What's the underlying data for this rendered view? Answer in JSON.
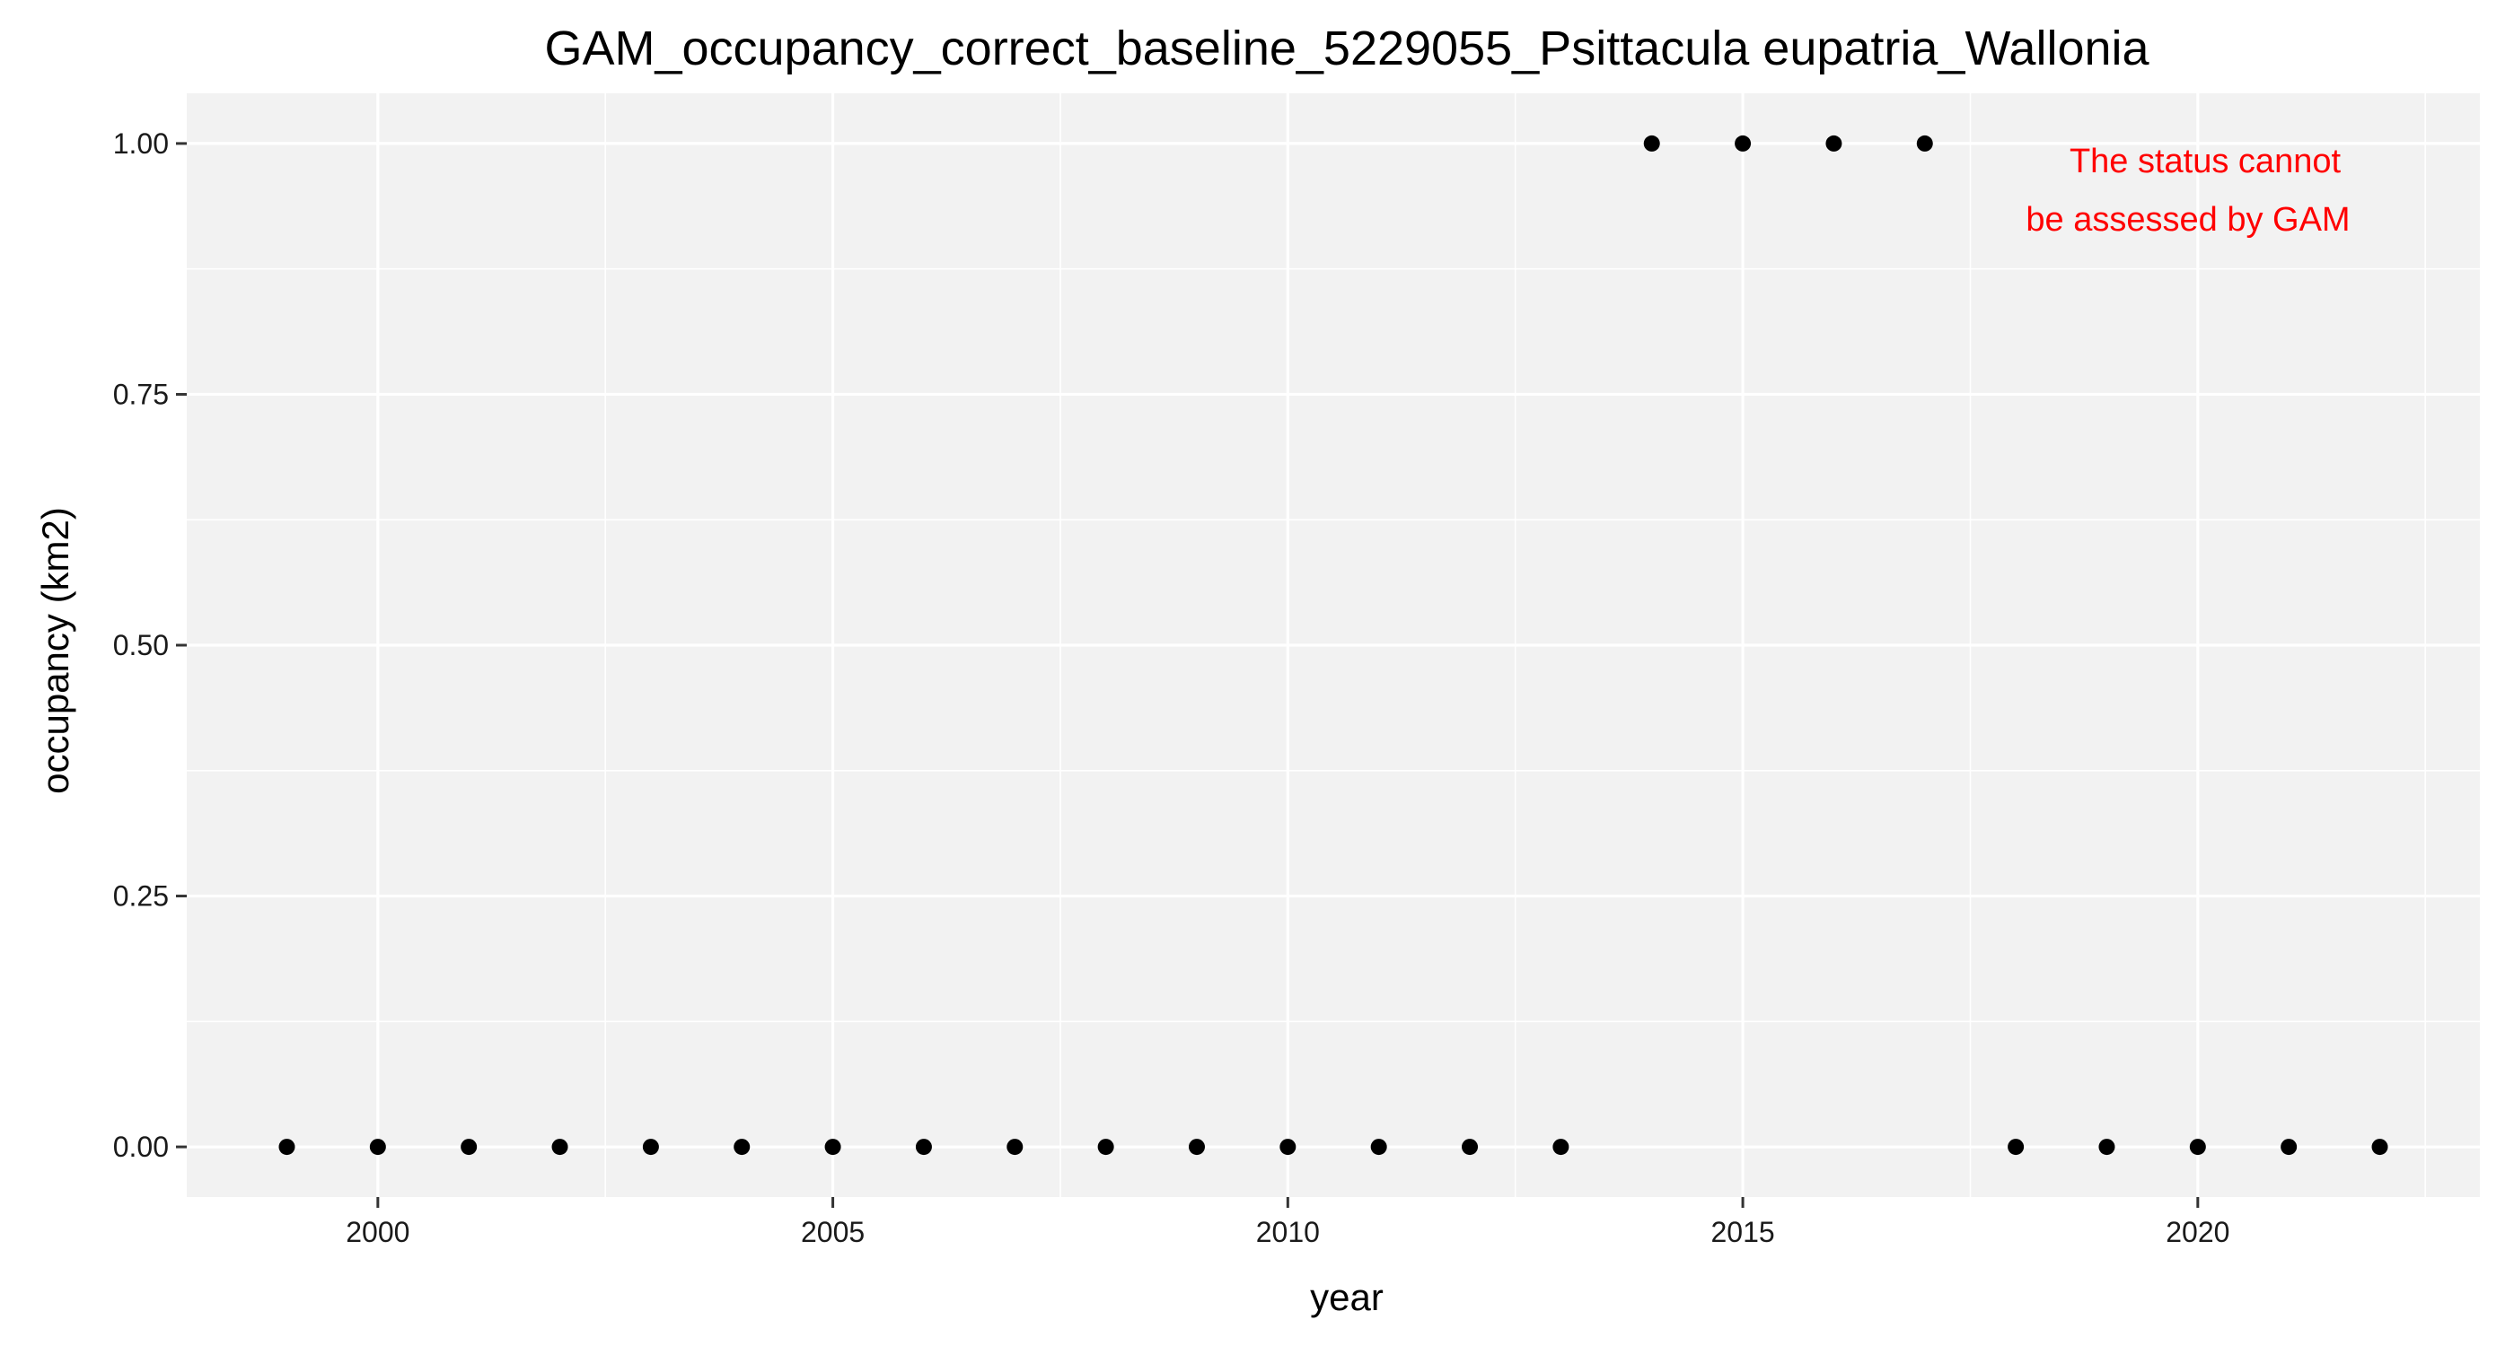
{
  "chart_data": {
    "type": "scatter",
    "title": "GAM_occupancy_correct_baseline_5229055_Psittacula eupatria_Wallonia",
    "xlabel": "year",
    "ylabel": "occupancy (km2)",
    "xlim": [
      1997.9,
      2023.1
    ],
    "ylim": [
      -0.05,
      1.05
    ],
    "x_ticks": [
      2000,
      2005,
      2010,
      2015,
      2020
    ],
    "x_tick_labels": [
      "2000",
      "2005",
      "2010",
      "2015",
      "2020"
    ],
    "y_ticks": [
      0,
      0.25,
      0.5,
      0.75,
      1.0
    ],
    "y_tick_labels": [
      "0.00",
      "0.25",
      "0.50",
      "0.75",
      "1.00"
    ],
    "grid": true,
    "legend": false,
    "series": [
      {
        "x": [
          1999,
          2000,
          2001,
          2002,
          2003,
          2004,
          2005,
          2006,
          2007,
          2008,
          2009,
          2010,
          2011,
          2012,
          2013,
          2014,
          2015,
          2016,
          2017,
          2018,
          2019,
          2020,
          2021,
          2022
        ],
        "y": [
          0,
          0,
          0,
          0,
          0,
          0,
          0,
          0,
          0,
          0,
          0,
          0,
          0,
          0,
          0,
          1,
          1,
          1,
          1,
          0,
          0,
          0,
          0,
          0
        ]
      }
    ],
    "annotation": {
      "lines": [
        "The status cannot",
        "be assessed by GAM"
      ],
      "color": "#ff0000"
    },
    "colors": {
      "panel_background": "#f2f2f2",
      "grid": "#ffffff",
      "points": "#000000"
    }
  }
}
